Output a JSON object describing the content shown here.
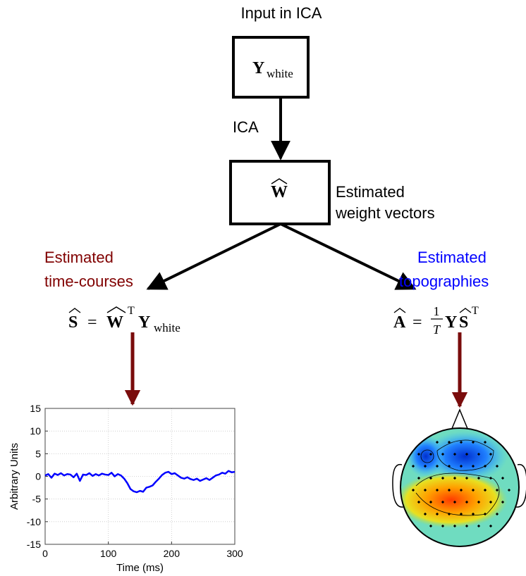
{
  "diagram": {
    "input_label": "Input in ICA",
    "boxes": [
      {
        "label": "Y",
        "subscript": "white"
      },
      {
        "label": "W"
      }
    ],
    "edge_label": "ICA",
    "weight_label": [
      "Estimated",
      "weight vectors"
    ],
    "left_label": [
      "Estimated",
      "time-courses"
    ],
    "right_label": [
      "Estimated",
      "topographies"
    ],
    "left_formula": [
      "S",
      "=",
      "W",
      "T",
      "Y",
      "white"
    ],
    "right_formula": [
      "A",
      "=",
      "1",
      "T",
      "Y",
      "S",
      "T"
    ]
  },
  "chart_data": {
    "type": "line",
    "xlabel": "Time (ms)",
    "ylabel": "Arbitrary Units",
    "color": "#0000ff",
    "grid": true,
    "x": [
      0,
      5,
      10,
      15,
      20,
      25,
      30,
      35,
      40,
      45,
      50,
      55,
      60,
      65,
      70,
      75,
      80,
      85,
      90,
      95,
      100,
      105,
      110,
      115,
      120,
      125,
      130,
      135,
      140,
      145,
      150,
      155,
      160,
      165,
      170,
      175,
      180,
      185,
      190,
      195,
      200,
      205,
      210,
      215,
      220,
      225,
      230,
      235,
      240,
      245,
      250,
      255,
      260,
      265,
      270,
      275,
      280,
      285,
      290,
      295,
      300
    ],
    "values": [
      0.2,
      0.5,
      -0.3,
      0.6,
      0.3,
      0.7,
      0.2,
      0.5,
      0.4,
      -0.2,
      0.6,
      -1.0,
      0.4,
      0.3,
      0.7,
      0.1,
      0.5,
      0.2,
      0.6,
      0.4,
      0.3,
      0.8,
      0.0,
      0.5,
      0.2,
      -0.5,
      -1.5,
      -2.8,
      -3.3,
      -3.5,
      -3.2,
      -3.4,
      -2.5,
      -2.3,
      -2.0,
      -1.2,
      -0.5,
      0.3,
      0.8,
      1.0,
      0.5,
      0.7,
      0.2,
      -0.3,
      -0.5,
      -0.2,
      -0.6,
      -0.8,
      -0.5,
      -1.0,
      -0.7,
      -0.4,
      -0.8,
      -0.3,
      0.2,
      0.4,
      0.8,
      0.6,
      1.2,
      0.9,
      1.0
    ],
    "xlim": [
      0,
      300
    ],
    "xticks": [
      0,
      100,
      200,
      300
    ],
    "ylim": [
      -15,
      15
    ],
    "yticks": [
      15,
      10,
      5,
      0,
      -5,
      -10,
      -15
    ]
  }
}
